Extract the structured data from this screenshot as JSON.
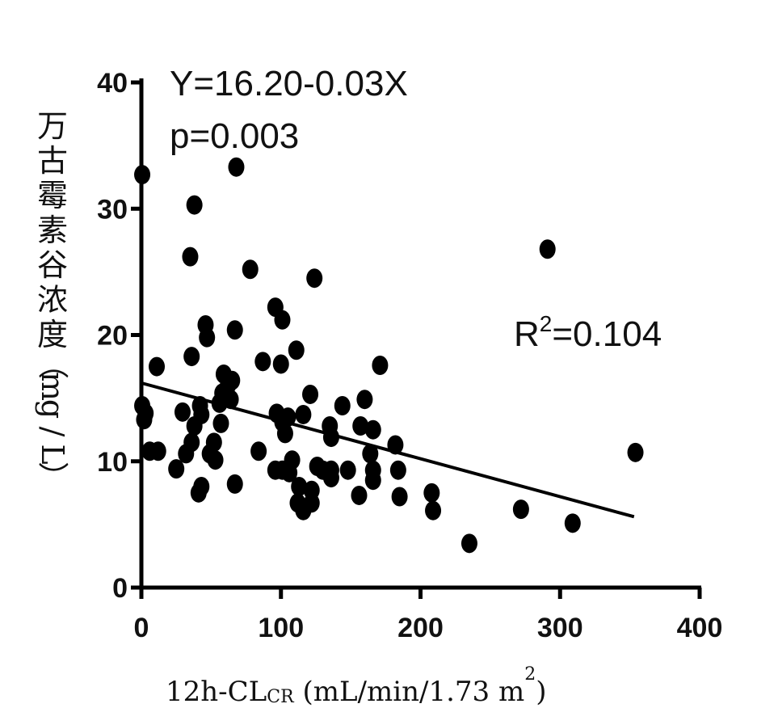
{
  "chart_data": {
    "type": "scatter",
    "title": "",
    "ylabel": "万古霉素谷浓度（mg/L）",
    "xlabel": {
      "main": "12h-CL",
      "sub": "CR",
      "rest": " (mL/min/1.73 m",
      "sup": "2",
      "close": ")"
    },
    "xlim": [
      0,
      400
    ],
    "ylim": [
      0,
      40
    ],
    "xticks": [
      0,
      100,
      200,
      300,
      400
    ],
    "yticks": [
      0,
      10,
      20,
      30,
      40
    ],
    "grid": false,
    "annotations": {
      "equation": "Y=16.20-0.03X",
      "p_value": "p=0.003",
      "r2_prefix": "R",
      "r2_sup": "2",
      "r2_value": "=0.104"
    },
    "regression": {
      "intercept": 16.2,
      "slope": -0.03,
      "x_range": [
        0,
        353
      ]
    },
    "marker_color": "#000000",
    "points": [
      [
        0.6,
        32.7
      ],
      [
        68,
        33.3
      ],
      [
        38,
        30.3
      ],
      [
        35,
        26.2
      ],
      [
        78,
        25.2
      ],
      [
        124,
        24.5
      ],
      [
        96,
        22.2
      ],
      [
        101,
        21.2
      ],
      [
        46,
        20.8
      ],
      [
        67,
        20.4
      ],
      [
        47,
        19.8
      ],
      [
        36,
        18.3
      ],
      [
        111,
        18.8
      ],
      [
        11,
        17.5
      ],
      [
        87,
        17.9
      ],
      [
        100,
        17.7
      ],
      [
        171,
        17.6
      ],
      [
        59,
        16.9
      ],
      [
        62,
        16.0
      ],
      [
        65,
        16.4
      ],
      [
        58,
        15.4
      ],
      [
        64,
        14.9
      ],
      [
        121,
        15.3
      ],
      [
        160,
        14.9
      ],
      [
        0.6,
        14.4
      ],
      [
        3,
        13.8
      ],
      [
        2,
        13.3
      ],
      [
        29.5,
        13.9
      ],
      [
        42,
        14.4
      ],
      [
        43,
        13.7
      ],
      [
        38,
        12.8
      ],
      [
        56,
        14.6
      ],
      [
        57,
        13.0
      ],
      [
        97,
        13.8
      ],
      [
        101,
        13.1
      ],
      [
        103,
        12.2
      ],
      [
        105,
        13.5
      ],
      [
        116,
        13.7
      ],
      [
        144,
        14.4
      ],
      [
        157,
        12.8
      ],
      [
        135,
        12.8
      ],
      [
        136,
        11.9
      ],
      [
        166,
        12.5
      ],
      [
        182,
        11.3
      ],
      [
        36,
        11.5
      ],
      [
        25,
        9.4
      ],
      [
        6,
        10.8
      ],
      [
        12,
        10.8
      ],
      [
        32,
        10.6
      ],
      [
        52,
        11.5
      ],
      [
        49,
        10.6
      ],
      [
        53,
        10.1
      ],
      [
        84,
        10.8
      ],
      [
        96,
        9.3
      ],
      [
        101,
        9.3
      ],
      [
        108,
        10.1
      ],
      [
        106,
        9.1
      ],
      [
        126,
        9.6
      ],
      [
        130,
        9.3
      ],
      [
        136,
        9.3
      ],
      [
        148,
        9.3
      ],
      [
        164,
        10.6
      ],
      [
        166,
        9.3
      ],
      [
        166,
        8.5
      ],
      [
        184,
        9.3
      ],
      [
        41,
        7.5
      ],
      [
        43,
        8.0
      ],
      [
        67,
        8.2
      ],
      [
        112,
        6.7
      ],
      [
        116,
        6.1
      ],
      [
        122,
        6.7
      ],
      [
        122,
        7.7
      ],
      [
        113,
        8.0
      ],
      [
        136,
        8.7
      ],
      [
        156,
        7.3
      ],
      [
        185,
        7.2
      ],
      [
        208,
        7.5
      ],
      [
        209,
        6.1
      ],
      [
        235,
        3.5
      ],
      [
        272,
        6.2
      ],
      [
        291,
        26.8
      ],
      [
        309,
        5.1
      ],
      [
        354,
        10.7
      ]
    ]
  }
}
